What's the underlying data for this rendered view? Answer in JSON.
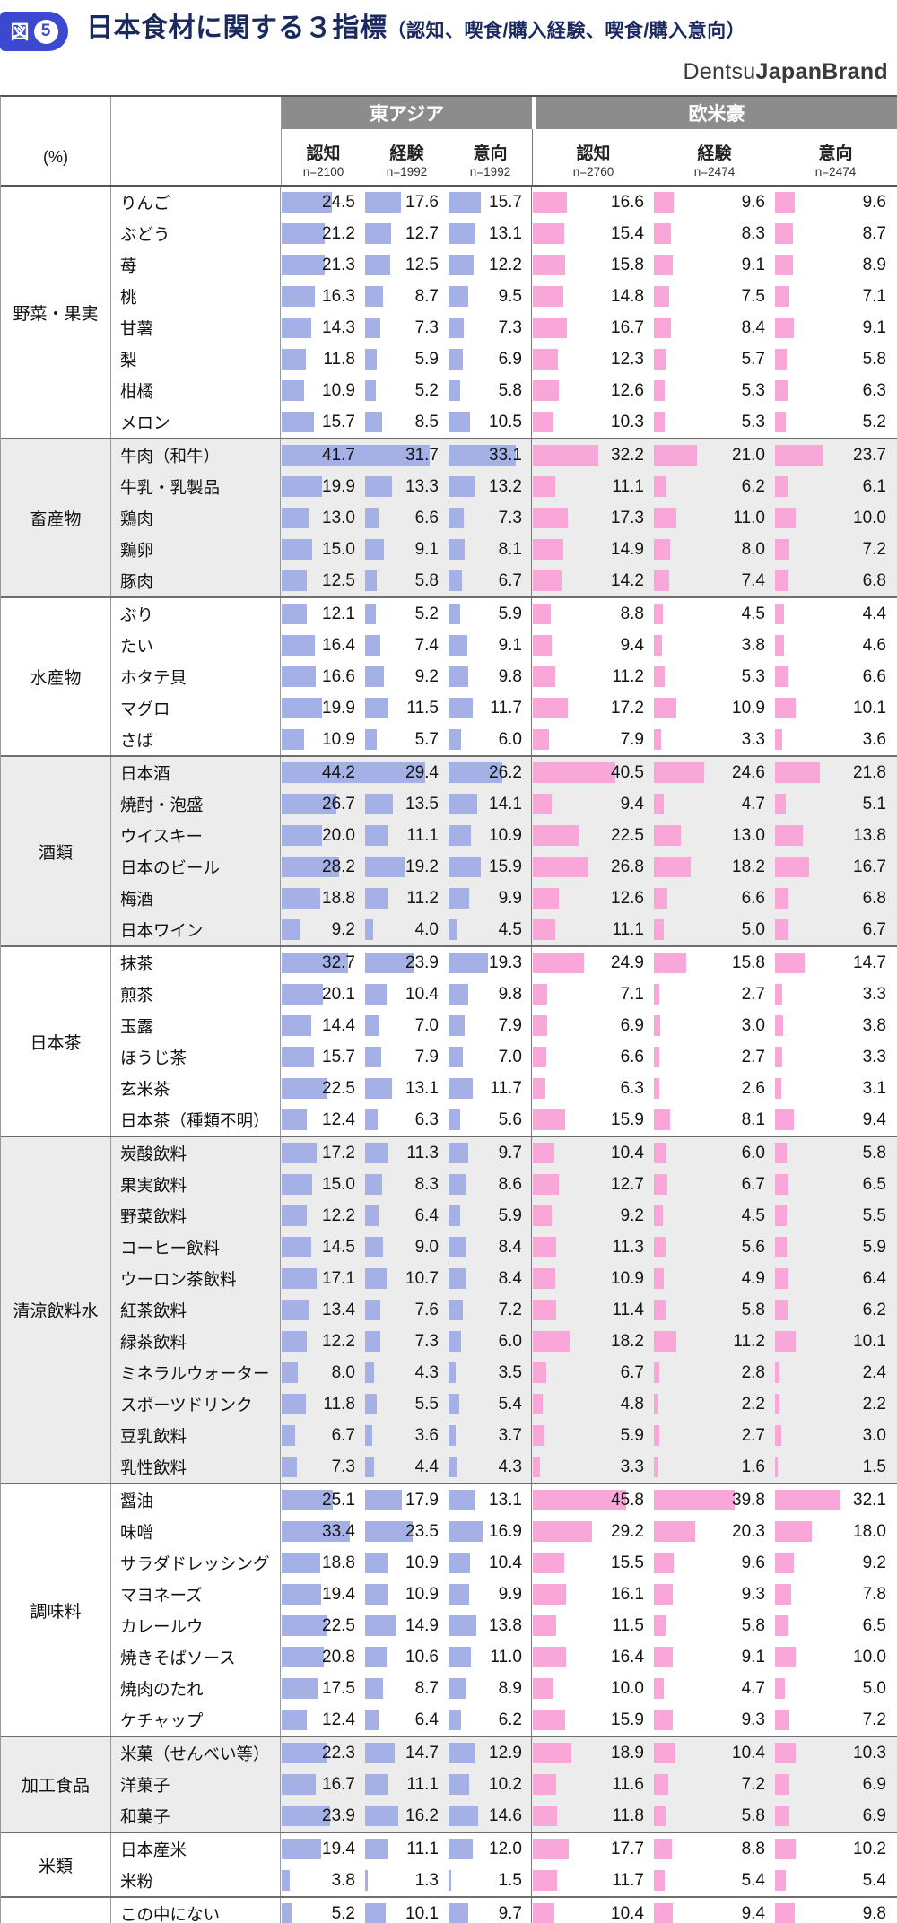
{
  "header": {
    "badge_label": "図",
    "badge_number": "5",
    "title": "日本食材に関する３指標",
    "title_suffix": "（認知、喫食/購入経験、喫食/購入意向）",
    "logo_regular": "Dentsu",
    "logo_bold": "JapanBrand"
  },
  "colors": {
    "east_asia_bar": "#A4B0E6",
    "west_bar": "#F9A6D8",
    "header_band_gray": "#8C8C8C",
    "title_navy": "#1B2A5E",
    "badge_blue": "#3A49CF",
    "group_shade": "#ECECEC"
  },
  "table": {
    "unit_label": "(%)",
    "region_groups": [
      {
        "label": "東アジア",
        "columns": [
          {
            "label": "認知",
            "n": "n=2100"
          },
          {
            "label": "経験",
            "n": "n=1992"
          },
          {
            "label": "意向",
            "n": "n=1992"
          }
        ]
      },
      {
        "label": "欧米豪",
        "columns": [
          {
            "label": "認知",
            "n": "n=2760"
          },
          {
            "label": "経験",
            "n": "n=2474"
          },
          {
            "label": "意向",
            "n": "n=2474"
          }
        ]
      }
    ]
  },
  "chart_data": {
    "type": "bar",
    "unit": "%",
    "regions": [
      "東アジア",
      "欧米豪"
    ],
    "metrics": [
      "認知",
      "経験",
      "意向"
    ],
    "sample_sizes": {
      "東アジア": [
        2100,
        1992,
        1992
      ],
      "欧米豪": [
        2760,
        2474,
        2474
      ]
    },
    "groups": [
      {
        "category": "野菜・果実",
        "items": [
          {
            "label": "りんご",
            "east_asia": [
              24.5,
              17.6,
              15.7
            ],
            "west": [
              16.6,
              9.6,
              9.6
            ]
          },
          {
            "label": "ぶどう",
            "east_asia": [
              21.2,
              12.7,
              13.1
            ],
            "west": [
              15.4,
              8.3,
              8.7
            ]
          },
          {
            "label": "苺",
            "east_asia": [
              21.3,
              12.5,
              12.2
            ],
            "west": [
              15.8,
              9.1,
              8.9
            ]
          },
          {
            "label": "桃",
            "east_asia": [
              16.3,
              8.7,
              9.5
            ],
            "west": [
              14.8,
              7.5,
              7.1
            ]
          },
          {
            "label": "甘薯",
            "east_asia": [
              14.3,
              7.3,
              7.3
            ],
            "west": [
              16.7,
              8.4,
              9.1
            ]
          },
          {
            "label": "梨",
            "east_asia": [
              11.8,
              5.9,
              6.9
            ],
            "west": [
              12.3,
              5.7,
              5.8
            ]
          },
          {
            "label": "柑橘",
            "east_asia": [
              10.9,
              5.2,
              5.8
            ],
            "west": [
              12.6,
              5.3,
              6.3
            ]
          },
          {
            "label": "メロン",
            "east_asia": [
              15.7,
              8.5,
              10.5
            ],
            "west": [
              10.3,
              5.3,
              5.2
            ]
          }
        ]
      },
      {
        "category": "畜産物",
        "items": [
          {
            "label": "牛肉（和牛）",
            "east_asia": [
              41.7,
              31.7,
              33.1
            ],
            "west": [
              32.2,
              21.0,
              23.7
            ]
          },
          {
            "label": "牛乳・乳製品",
            "east_asia": [
              19.9,
              13.3,
              13.2
            ],
            "west": [
              11.1,
              6.2,
              6.1
            ]
          },
          {
            "label": "鶏肉",
            "east_asia": [
              13.0,
              6.6,
              7.3
            ],
            "west": [
              17.3,
              11.0,
              10.0
            ]
          },
          {
            "label": "鶏卵",
            "east_asia": [
              15.0,
              9.1,
              8.1
            ],
            "west": [
              14.9,
              8.0,
              7.2
            ]
          },
          {
            "label": "豚肉",
            "east_asia": [
              12.5,
              5.8,
              6.7
            ],
            "west": [
              14.2,
              7.4,
              6.8
            ]
          }
        ]
      },
      {
        "category": "水産物",
        "items": [
          {
            "label": "ぶり",
            "east_asia": [
              12.1,
              5.2,
              5.9
            ],
            "west": [
              8.8,
              4.5,
              4.4
            ]
          },
          {
            "label": "たい",
            "east_asia": [
              16.4,
              7.4,
              9.1
            ],
            "west": [
              9.4,
              3.8,
              4.6
            ]
          },
          {
            "label": "ホタテ貝",
            "east_asia": [
              16.6,
              9.2,
              9.8
            ],
            "west": [
              11.2,
              5.3,
              6.6
            ]
          },
          {
            "label": "マグロ",
            "east_asia": [
              19.9,
              11.5,
              11.7
            ],
            "west": [
              17.2,
              10.9,
              10.1
            ]
          },
          {
            "label": "さば",
            "east_asia": [
              10.9,
              5.7,
              6.0
            ],
            "west": [
              7.9,
              3.3,
              3.6
            ]
          }
        ]
      },
      {
        "category": "酒類",
        "items": [
          {
            "label": "日本酒",
            "east_asia": [
              44.2,
              29.4,
              26.2
            ],
            "west": [
              40.5,
              24.6,
              21.8
            ]
          },
          {
            "label": "焼酎・泡盛",
            "east_asia": [
              26.7,
              13.5,
              14.1
            ],
            "west": [
              9.4,
              4.7,
              5.1
            ]
          },
          {
            "label": "ウイスキー",
            "east_asia": [
              20.0,
              11.1,
              10.9
            ],
            "west": [
              22.5,
              13.0,
              13.8
            ]
          },
          {
            "label": "日本のビール",
            "east_asia": [
              28.2,
              19.2,
              15.9
            ],
            "west": [
              26.8,
              18.2,
              16.7
            ]
          },
          {
            "label": "梅酒",
            "east_asia": [
              18.8,
              11.2,
              9.9
            ],
            "west": [
              12.6,
              6.6,
              6.8
            ]
          },
          {
            "label": "日本ワイン",
            "east_asia": [
              9.2,
              4.0,
              4.5
            ],
            "west": [
              11.1,
              5.0,
              6.7
            ]
          }
        ]
      },
      {
        "category": "日本茶",
        "items": [
          {
            "label": "抹茶",
            "east_asia": [
              32.7,
              23.9,
              19.3
            ],
            "west": [
              24.9,
              15.8,
              14.7
            ]
          },
          {
            "label": "煎茶",
            "east_asia": [
              20.1,
              10.4,
              9.8
            ],
            "west": [
              7.1,
              2.7,
              3.3
            ]
          },
          {
            "label": "玉露",
            "east_asia": [
              14.4,
              7.0,
              7.9
            ],
            "west": [
              6.9,
              3.0,
              3.8
            ]
          },
          {
            "label": "ほうじ茶",
            "east_asia": [
              15.7,
              7.9,
              7.0
            ],
            "west": [
              6.6,
              2.7,
              3.3
            ]
          },
          {
            "label": "玄米茶",
            "east_asia": [
              22.5,
              13.1,
              11.7
            ],
            "west": [
              6.3,
              2.6,
              3.1
            ]
          },
          {
            "label": "日本茶（種類不明）",
            "east_asia": [
              12.4,
              6.3,
              5.6
            ],
            "west": [
              15.9,
              8.1,
              9.4
            ]
          }
        ]
      },
      {
        "category": "清涼飲料水",
        "items": [
          {
            "label": "炭酸飲料",
            "east_asia": [
              17.2,
              11.3,
              9.7
            ],
            "west": [
              10.4,
              6.0,
              5.8
            ]
          },
          {
            "label": "果実飲料",
            "east_asia": [
              15.0,
              8.3,
              8.6
            ],
            "west": [
              12.7,
              6.7,
              6.5
            ]
          },
          {
            "label": "野菜飲料",
            "east_asia": [
              12.2,
              6.4,
              5.9
            ],
            "west": [
              9.2,
              4.5,
              5.5
            ]
          },
          {
            "label": "コーヒー飲料",
            "east_asia": [
              14.5,
              9.0,
              8.4
            ],
            "west": [
              11.3,
              5.6,
              5.9
            ]
          },
          {
            "label": "ウーロン茶飲料",
            "east_asia": [
              17.1,
              10.7,
              8.4
            ],
            "west": [
              10.9,
              4.9,
              6.4
            ]
          },
          {
            "label": "紅茶飲料",
            "east_asia": [
              13.4,
              7.6,
              7.2
            ],
            "west": [
              11.4,
              5.8,
              6.2
            ]
          },
          {
            "label": "緑茶飲料",
            "east_asia": [
              12.2,
              7.3,
              6.0
            ],
            "west": [
              18.2,
              11.2,
              10.1
            ]
          },
          {
            "label": "ミネラルウォーター",
            "east_asia": [
              8.0,
              4.3,
              3.5
            ],
            "west": [
              6.7,
              2.8,
              2.4
            ]
          },
          {
            "label": "スポーツドリンク",
            "east_asia": [
              11.8,
              5.5,
              5.4
            ],
            "west": [
              4.8,
              2.2,
              2.2
            ]
          },
          {
            "label": "豆乳飲料",
            "east_asia": [
              6.7,
              3.6,
              3.7
            ],
            "west": [
              5.9,
              2.7,
              3.0
            ]
          },
          {
            "label": "乳性飲料",
            "east_asia": [
              7.3,
              4.4,
              4.3
            ],
            "west": [
              3.3,
              1.6,
              1.5
            ]
          }
        ]
      },
      {
        "category": "調味料",
        "items": [
          {
            "label": "醤油",
            "east_asia": [
              25.1,
              17.9,
              13.1
            ],
            "west": [
              45.8,
              39.8,
              32.1
            ]
          },
          {
            "label": "味噌",
            "east_asia": [
              33.4,
              23.5,
              16.9
            ],
            "west": [
              29.2,
              20.3,
              18.0
            ]
          },
          {
            "label": "サラダドレッシング",
            "east_asia": [
              18.8,
              10.9,
              10.4
            ],
            "west": [
              15.5,
              9.6,
              9.2
            ]
          },
          {
            "label": "マヨネーズ",
            "east_asia": [
              19.4,
              10.9,
              9.9
            ],
            "west": [
              16.1,
              9.3,
              7.8
            ]
          },
          {
            "label": "カレールウ",
            "east_asia": [
              22.5,
              14.9,
              13.8
            ],
            "west": [
              11.5,
              5.8,
              6.5
            ]
          },
          {
            "label": "焼きそばソース",
            "east_asia": [
              20.8,
              10.6,
              11.0
            ],
            "west": [
              16.4,
              9.1,
              10.0
            ]
          },
          {
            "label": "焼肉のたれ",
            "east_asia": [
              17.5,
              8.7,
              8.9
            ],
            "west": [
              10.0,
              4.7,
              5.0
            ]
          },
          {
            "label": "ケチャップ",
            "east_asia": [
              12.4,
              6.4,
              6.2
            ],
            "west": [
              15.9,
              9.3,
              7.2
            ]
          }
        ]
      },
      {
        "category": "加工食品",
        "items": [
          {
            "label": "米菓（せんべい等）",
            "east_asia": [
              22.3,
              14.7,
              12.9
            ],
            "west": [
              18.9,
              10.4,
              10.3
            ]
          },
          {
            "label": "洋菓子",
            "east_asia": [
              16.7,
              11.1,
              10.2
            ],
            "west": [
              11.6,
              7.2,
              6.9
            ]
          },
          {
            "label": "和菓子",
            "east_asia": [
              23.9,
              16.2,
              14.6
            ],
            "west": [
              11.8,
              5.8,
              6.9
            ]
          }
        ]
      },
      {
        "category": "米類",
        "items": [
          {
            "label": "日本産米",
            "east_asia": [
              19.4,
              11.1,
              12.0
            ],
            "west": [
              17.7,
              8.8,
              10.2
            ]
          },
          {
            "label": "米粉",
            "east_asia": [
              3.8,
              1.3,
              1.5
            ],
            "west": [
              11.7,
              5.4,
              5.4
            ]
          }
        ]
      },
      {
        "category": "",
        "items": [
          {
            "label": "この中にない",
            "east_asia": [
              5.2,
              10.1,
              9.7
            ],
            "west": [
              10.4,
              9.4,
              9.8
            ]
          }
        ]
      }
    ]
  }
}
